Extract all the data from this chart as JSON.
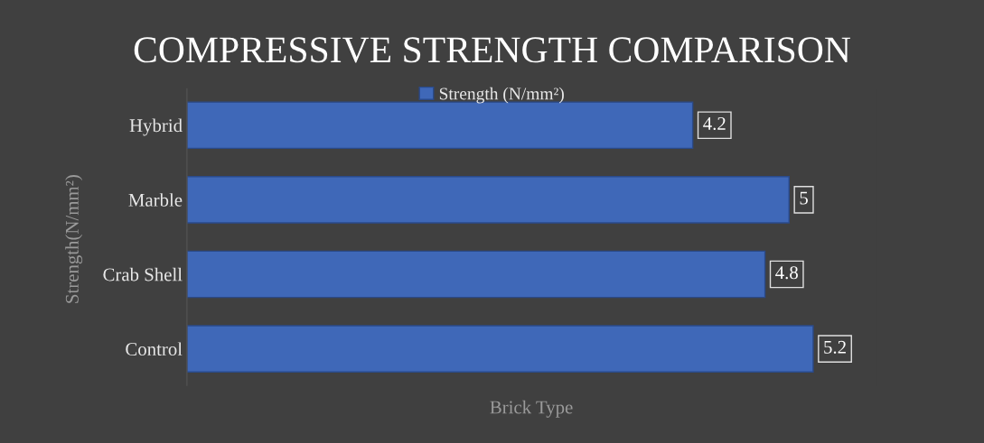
{
  "chart_data": {
    "type": "bar",
    "orientation": "horizontal",
    "title": "COMPRESSIVE STRENGTH COMPARISON",
    "xlabel": "Brick Type",
    "ylabel": "Strength(N/mm²)",
    "categories": [
      "Hybrid",
      "Marble",
      "Crab Shell",
      "Control"
    ],
    "series": [
      {
        "name": "Strength (N/mm²)",
        "color": "#3f68b8",
        "values": [
          4.2,
          5,
          4.8,
          5.2
        ]
      }
    ],
    "data_labels": true,
    "legend": "top",
    "grid": false,
    "tick_labels": "y"
  }
}
